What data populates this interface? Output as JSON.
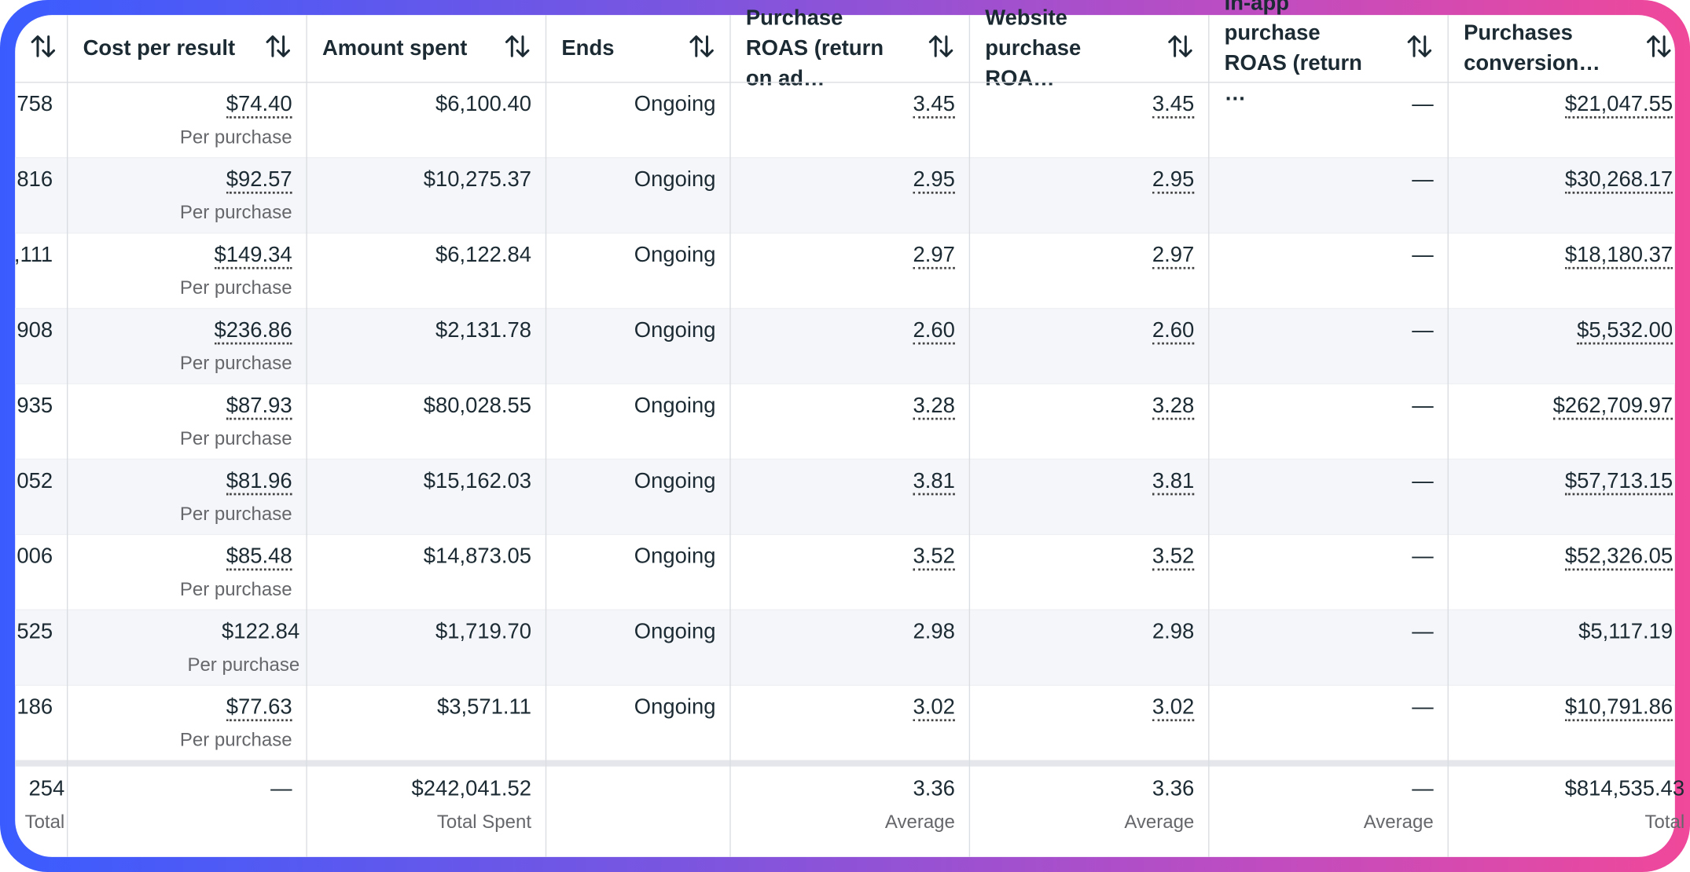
{
  "table": {
    "headers": [
      "Cost per result",
      "Amount spent",
      "Ends",
      "Purchase ROAS (return on ad…",
      "Website purchase ROA…",
      "In-app purchase ROAS (return …",
      "Purchases conversion…"
    ],
    "rows": [
      {
        "first": "758",
        "cost": "$74.40",
        "cost_note": "Per purchase",
        "amount": "$6,100.40",
        "ends": "Ongoing",
        "roas": "3.45",
        "web_roas": "3.45",
        "app_roas": "—",
        "conversion": "$21,047.55",
        "dotted": true
      },
      {
        "first": "816",
        "cost": "$92.57",
        "cost_note": "Per purchase",
        "amount": "$10,275.37",
        "ends": "Ongoing",
        "roas": "2.95",
        "web_roas": "2.95",
        "app_roas": "—",
        "conversion": "$30,268.17",
        "dotted": true
      },
      {
        "first": ",111",
        "cost": "$149.34",
        "cost_note": "Per purchase",
        "amount": "$6,122.84",
        "ends": "Ongoing",
        "roas": "2.97",
        "web_roas": "2.97",
        "app_roas": "—",
        "conversion": "$18,180.37",
        "dotted": true
      },
      {
        "first": "908",
        "cost": "$236.86",
        "cost_note": "Per purchase",
        "amount": "$2,131.78",
        "ends": "Ongoing",
        "roas": "2.60",
        "web_roas": "2.60",
        "app_roas": "—",
        "conversion": "$5,532.00",
        "dotted": true
      },
      {
        "first": "935",
        "cost": "$87.93",
        "cost_note": "Per purchase",
        "amount": "$80,028.55",
        "ends": "Ongoing",
        "roas": "3.28",
        "web_roas": "3.28",
        "app_roas": "—",
        "conversion": "$262,709.97",
        "dotted": true
      },
      {
        "first": "052",
        "cost": "$81.96",
        "cost_note": "Per purchase",
        "amount": "$15,162.03",
        "ends": "Ongoing",
        "roas": "3.81",
        "web_roas": "3.81",
        "app_roas": "—",
        "conversion": "$57,713.15",
        "dotted": true
      },
      {
        "first": "006",
        "cost": "$85.48",
        "cost_note": "Per purchase",
        "amount": "$14,873.05",
        "ends": "Ongoing",
        "roas": "3.52",
        "web_roas": "3.52",
        "app_roas": "—",
        "conversion": "$52,326.05",
        "dotted": true
      },
      {
        "first": "525",
        "cost": "$122.84",
        "cost_note": "Per purchase",
        "amount": "$1,719.70",
        "ends": "Ongoing",
        "roas": "2.98",
        "web_roas": "2.98",
        "app_roas": "—",
        "conversion": "$5,117.19",
        "dotted": false
      },
      {
        "first": "186",
        "cost": "$77.63",
        "cost_note": "Per purchase",
        "amount": "$3,571.11",
        "ends": "Ongoing",
        "roas": "3.02",
        "web_roas": "3.02",
        "app_roas": "—",
        "conversion": "$10,791.86",
        "dotted": true
      }
    ],
    "totals": {
      "first": "254",
      "first_note": "Total",
      "cost": "—",
      "amount": "$242,041.52",
      "amount_note": "Total Spent",
      "roas": "3.36",
      "roas_note": "Average",
      "web_roas": "3.36",
      "web_roas_note": "Average",
      "app_roas": "—",
      "app_roas_note": "Average",
      "conversion": "$814,535.43",
      "conversion_note": "Total"
    }
  }
}
